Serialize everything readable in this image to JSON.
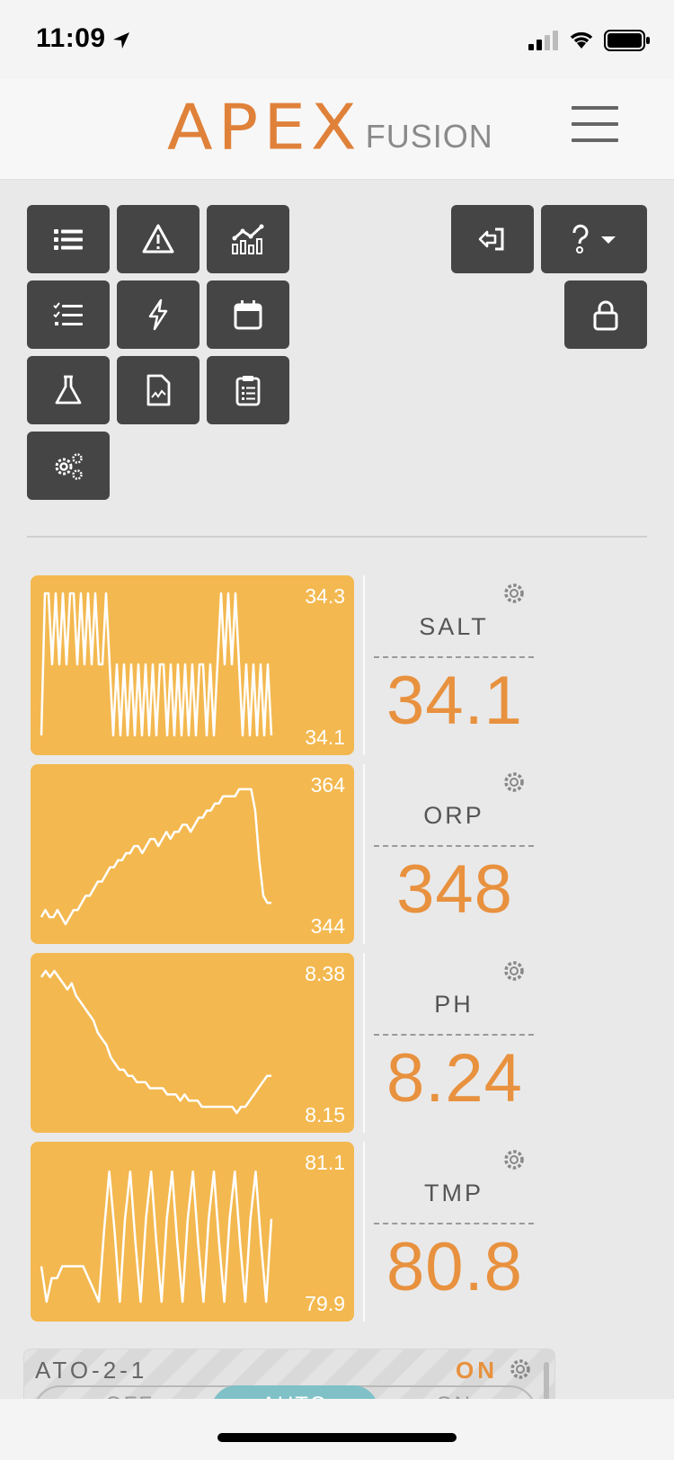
{
  "status_bar": {
    "time": "11:09",
    "icons": [
      "location-arrow-icon",
      "cellular-signal-icon",
      "wifi-icon",
      "battery-icon"
    ]
  },
  "header": {
    "logo_primary": "APEX",
    "logo_secondary": "FUSION",
    "menu_icon": "hamburger-menu-icon"
  },
  "colors": {
    "accent_orange": "#e8913e",
    "graph_bg": "#f3b84f",
    "button_dark": "#444544",
    "auto_teal": "#7fc1c7"
  },
  "toolbar": {
    "left_buttons": [
      "list-icon",
      "alert-triangle-icon",
      "chart-icon",
      "checklist-icon",
      "lightning-icon",
      "calendar-icon",
      "flask-icon",
      "document-graph-icon",
      "clipboard-icon",
      "gears-icon"
    ],
    "right_buttons": [
      "sign-in-icon",
      "help-dropdown-icon",
      "lock-icon"
    ]
  },
  "probes": [
    {
      "name": "SALT",
      "value": "34.1",
      "graph_max": "34.3",
      "graph_min": "34.1"
    },
    {
      "name": "ORP",
      "value": "348",
      "graph_max": "364",
      "graph_min": "344"
    },
    {
      "name": "PH",
      "value": "8.24",
      "graph_max": "8.38",
      "graph_min": "8.15"
    },
    {
      "name": "TMP",
      "value": "80.8",
      "graph_max": "81.1",
      "graph_min": "79.9"
    }
  ],
  "chart_data": [
    {
      "type": "line",
      "title": "SALT",
      "ylim": [
        34.1,
        34.3
      ],
      "series": [
        {
          "values": [
            34.1,
            34.3,
            34.3,
            34.2,
            34.3,
            34.2,
            34.3,
            34.2,
            34.3,
            34.3,
            34.2,
            34.3,
            34.2,
            34.3,
            34.2,
            34.3,
            34.2,
            34.2,
            34.3,
            34.2,
            34.1,
            34.2,
            34.1,
            34.2,
            34.1,
            34.2,
            34.1,
            34.2,
            34.1,
            34.2,
            34.1,
            34.2,
            34.1,
            34.2,
            34.2,
            34.1,
            34.2,
            34.1,
            34.2,
            34.1,
            34.2,
            34.1,
            34.2,
            34.1,
            34.2,
            34.2,
            34.1,
            34.2,
            34.1,
            34.2,
            34.3,
            34.2,
            34.3,
            34.2,
            34.3,
            34.2,
            34.1,
            34.2,
            34.1,
            34.2,
            34.1,
            34.2,
            34.1,
            34.2,
            34.1
          ]
        }
      ]
    },
    {
      "type": "line",
      "title": "ORP",
      "ylim": [
        344,
        364
      ],
      "series": [
        {
          "values": [
            345,
            346,
            345,
            345,
            346,
            345,
            344,
            345,
            346,
            346,
            347,
            348,
            348,
            349,
            350,
            350,
            351,
            352,
            352,
            353,
            353,
            354,
            354,
            355,
            355,
            354,
            355,
            356,
            356,
            355,
            356,
            357,
            356,
            357,
            357,
            358,
            358,
            357,
            358,
            359,
            359,
            360,
            360,
            361,
            361,
            362,
            362,
            362,
            362,
            363,
            363,
            363,
            363,
            360,
            353,
            348,
            347,
            347
          ]
        }
      ]
    },
    {
      "type": "line",
      "title": "PH",
      "ylim": [
        8.15,
        8.38
      ],
      "series": [
        {
          "values": [
            8.37,
            8.38,
            8.37,
            8.38,
            8.37,
            8.36,
            8.35,
            8.36,
            8.34,
            8.33,
            8.32,
            8.31,
            8.3,
            8.28,
            8.27,
            8.26,
            8.24,
            8.23,
            8.22,
            8.22,
            8.21,
            8.21,
            8.2,
            8.2,
            8.2,
            8.19,
            8.19,
            8.19,
            8.19,
            8.18,
            8.18,
            8.18,
            8.17,
            8.18,
            8.17,
            8.17,
            8.17,
            8.16,
            8.16,
            8.16,
            8.16,
            8.16,
            8.16,
            8.16,
            8.16,
            8.15,
            8.16,
            8.16,
            8.17,
            8.18,
            8.19,
            8.2,
            8.21,
            8.21
          ]
        }
      ]
    },
    {
      "type": "line",
      "title": "TMP",
      "ylim": [
        79.9,
        81.1
      ],
      "series": [
        {
          "values": [
            80.2,
            79.9,
            80.1,
            80.1,
            80.2,
            80.2,
            80.2,
            80.2,
            80.2,
            80.1,
            80.0,
            79.9,
            80.5,
            81.0,
            80.5,
            79.9,
            80.6,
            81.0,
            80.4,
            79.9,
            80.6,
            81.0,
            80.4,
            79.9,
            80.6,
            81.0,
            80.4,
            79.9,
            80.6,
            81.0,
            80.4,
            79.9,
            80.6,
            81.0,
            80.4,
            79.9,
            80.6,
            81.0,
            80.4,
            79.9,
            80.6,
            81.0,
            80.4,
            79.9,
            80.6
          ]
        }
      ]
    }
  ],
  "ato": {
    "name": "ATO-2-1",
    "state": "ON",
    "options": [
      "OFF",
      "AUTO",
      "ON"
    ],
    "selected": "AUTO"
  }
}
